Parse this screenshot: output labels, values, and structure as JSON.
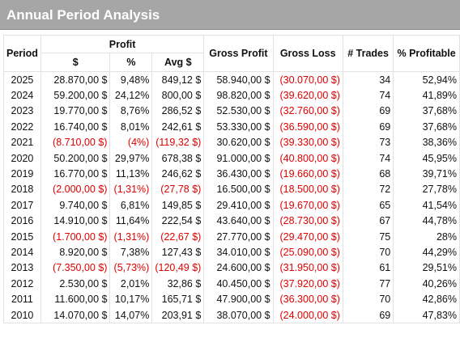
{
  "title": "Annual Period Analysis",
  "headers": {
    "period": "Period",
    "profit": "Profit",
    "profit_abs": "$",
    "profit_pct": "%",
    "avg": "Avg $",
    "gross_profit": "Gross Profit",
    "gross_loss": "Gross Loss",
    "trades": "# Trades",
    "pct_profitable": "% Profitable"
  },
  "colors": {
    "header_bg": "#a6a6a6",
    "negative": "#e00000",
    "grid": "#e2e2e2"
  },
  "rows": [
    {
      "year": "2025",
      "profit": "28.870,00 $",
      "pct": "9,48%",
      "avg": "849,12 $",
      "gp": "58.940,00 $",
      "gl": "(30.070,00 $)",
      "trades": "34",
      "pp": "52,94%",
      "neg": false
    },
    {
      "year": "2024",
      "profit": "59.200,00 $",
      "pct": "24,12%",
      "avg": "800,00 $",
      "gp": "98.820,00 $",
      "gl": "(39.620,00 $)",
      "trades": "74",
      "pp": "41,89%",
      "neg": false
    },
    {
      "year": "2023",
      "profit": "19.770,00 $",
      "pct": "8,76%",
      "avg": "286,52 $",
      "gp": "52.530,00 $",
      "gl": "(32.760,00 $)",
      "trades": "69",
      "pp": "37,68%",
      "neg": false
    },
    {
      "year": "2022",
      "profit": "16.740,00 $",
      "pct": "8,01%",
      "avg": "242,61 $",
      "gp": "53.330,00 $",
      "gl": "(36.590,00 $)",
      "trades": "69",
      "pp": "37,68%",
      "neg": false
    },
    {
      "year": "2021",
      "profit": "(8.710,00 $)",
      "pct": "(4%)",
      "avg": "(119,32 $)",
      "gp": "30.620,00 $",
      "gl": "(39.330,00 $)",
      "trades": "73",
      "pp": "38,36%",
      "neg": true
    },
    {
      "year": "2020",
      "profit": "50.200,00 $",
      "pct": "29,97%",
      "avg": "678,38 $",
      "gp": "91.000,00 $",
      "gl": "(40.800,00 $)",
      "trades": "74",
      "pp": "45,95%",
      "neg": false
    },
    {
      "year": "2019",
      "profit": "16.770,00 $",
      "pct": "11,13%",
      "avg": "246,62 $",
      "gp": "36.430,00 $",
      "gl": "(19.660,00 $)",
      "trades": "68",
      "pp": "39,71%",
      "neg": false
    },
    {
      "year": "2018",
      "profit": "(2.000,00 $)",
      "pct": "(1,31%)",
      "avg": "(27,78 $)",
      "gp": "16.500,00 $",
      "gl": "(18.500,00 $)",
      "trades": "72",
      "pp": "27,78%",
      "neg": true
    },
    {
      "year": "2017",
      "profit": "9.740,00 $",
      "pct": "6,81%",
      "avg": "149,85 $",
      "gp": "29.410,00 $",
      "gl": "(19.670,00 $)",
      "trades": "65",
      "pp": "41,54%",
      "neg": false
    },
    {
      "year": "2016",
      "profit": "14.910,00 $",
      "pct": "11,64%",
      "avg": "222,54 $",
      "gp": "43.640,00 $",
      "gl": "(28.730,00 $)",
      "trades": "67",
      "pp": "44,78%",
      "neg": false
    },
    {
      "year": "2015",
      "profit": "(1.700,00 $)",
      "pct": "(1,31%)",
      "avg": "(22,67 $)",
      "gp": "27.770,00 $",
      "gl": "(29.470,00 $)",
      "trades": "75",
      "pp": "28%",
      "neg": true
    },
    {
      "year": "2014",
      "profit": "8.920,00 $",
      "pct": "7,38%",
      "avg": "127,43 $",
      "gp": "34.010,00 $",
      "gl": "(25.090,00 $)",
      "trades": "70",
      "pp": "44,29%",
      "neg": false
    },
    {
      "year": "2013",
      "profit": "(7.350,00 $)",
      "pct": "(5,73%)",
      "avg": "(120,49 $)",
      "gp": "24.600,00 $",
      "gl": "(31.950,00 $)",
      "trades": "61",
      "pp": "29,51%",
      "neg": true
    },
    {
      "year": "2012",
      "profit": "2.530,00 $",
      "pct": "2,01%",
      "avg": "32,86 $",
      "gp": "40.450,00 $",
      "gl": "(37.920,00 $)",
      "trades": "77",
      "pp": "40,26%",
      "neg": false
    },
    {
      "year": "2011",
      "profit": "11.600,00 $",
      "pct": "10,17%",
      "avg": "165,71 $",
      "gp": "47.900,00 $",
      "gl": "(36.300,00 $)",
      "trades": "70",
      "pp": "42,86%",
      "neg": false
    },
    {
      "year": "2010",
      "profit": "14.070,00 $",
      "pct": "14,07%",
      "avg": "203,91 $",
      "gp": "38.070,00 $",
      "gl": "(24.000,00 $)",
      "trades": "69",
      "pp": "47,83%",
      "neg": false
    }
  ]
}
